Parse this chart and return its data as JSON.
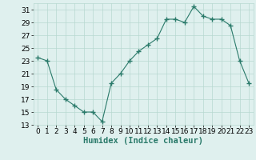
{
  "x": [
    0,
    1,
    2,
    3,
    4,
    5,
    6,
    7,
    8,
    9,
    10,
    11,
    12,
    13,
    14,
    15,
    16,
    17,
    18,
    19,
    20,
    21,
    22,
    23
  ],
  "y": [
    23.5,
    23.0,
    18.5,
    17.0,
    16.0,
    15.0,
    15.0,
    13.5,
    19.5,
    21.0,
    23.0,
    24.5,
    25.5,
    26.5,
    29.5,
    29.5,
    29.0,
    31.5,
    30.0,
    29.5,
    29.5,
    28.5,
    23.0,
    19.5
  ],
  "xlabel": "Humidex (Indice chaleur)",
  "ylim": [
    13,
    32
  ],
  "xlim": [
    -0.5,
    23.5
  ],
  "yticks": [
    13,
    15,
    17,
    19,
    21,
    23,
    25,
    27,
    29,
    31
  ],
  "xticks": [
    0,
    1,
    2,
    3,
    4,
    5,
    6,
    7,
    8,
    9,
    10,
    11,
    12,
    13,
    14,
    15,
    16,
    17,
    18,
    19,
    20,
    21,
    22,
    23
  ],
  "line_color": "#2a7a6a",
  "marker": "+",
  "marker_size": 4,
  "bg_color": "#dff0ee",
  "grid_color": "#b8d8d0",
  "xlabel_fontsize": 7.5,
  "tick_fontsize": 6.5,
  "title": ""
}
